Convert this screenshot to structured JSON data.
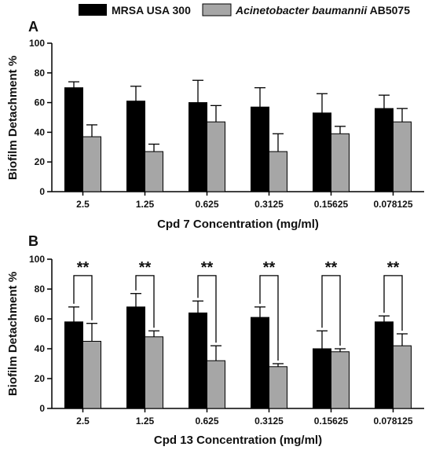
{
  "colors": {
    "series_a": "#000000",
    "series_b": "#a6a6a6",
    "axis": "#000000"
  },
  "legend": [
    {
      "name": "MRSA USA 300",
      "italic_part": "",
      "suffix": ""
    },
    {
      "name": "",
      "italic_part": "Acinetobacter baumannii",
      "suffix": " AB5075"
    }
  ],
  "chart_data": [
    {
      "panel": "A",
      "type": "bar",
      "xlabel": "Cpd 7 Concentration (mg/ml)",
      "ylabel": "Biofilm Detachment %",
      "ylim": [
        0,
        100
      ],
      "yticks": [
        0,
        20,
        40,
        60,
        80,
        100
      ],
      "categories": [
        "2.5",
        "1.25",
        "0.625",
        "0.3125",
        "0.15625",
        "0.078125"
      ],
      "series": [
        {
          "name": "MRSA USA 300",
          "values": [
            70,
            61,
            60,
            57,
            53,
            56
          ],
          "errors": [
            4,
            10,
            15,
            13,
            13,
            9
          ]
        },
        {
          "name": "Acinetobacter baumannii AB5075",
          "values": [
            37,
            27,
            47,
            27,
            39,
            47
          ],
          "errors": [
            8,
            5,
            11,
            12,
            5,
            9
          ]
        }
      ],
      "significance": []
    },
    {
      "panel": "B",
      "type": "bar",
      "xlabel": "Cpd 13 Concentration (mg/ml)",
      "ylabel": "Biofilm Detachment %",
      "ylim": [
        0,
        100
      ],
      "yticks": [
        0,
        20,
        40,
        60,
        80,
        100
      ],
      "categories": [
        "2.5",
        "1.25",
        "0.625",
        "0.3125",
        "0.15625",
        "0.078125"
      ],
      "series": [
        {
          "name": "MRSA USA 300",
          "values": [
            58,
            68,
            64,
            61,
            40,
            58
          ],
          "errors": [
            10,
            9,
            8,
            7,
            12,
            4
          ]
        },
        {
          "name": "Acinetobacter baumannii AB5075",
          "values": [
            45,
            48,
            32,
            28,
            38,
            42
          ],
          "errors": [
            12,
            4,
            10,
            2,
            2,
            8
          ]
        }
      ],
      "significance": [
        "**",
        "**",
        "**",
        "**",
        "**",
        "**"
      ]
    }
  ]
}
